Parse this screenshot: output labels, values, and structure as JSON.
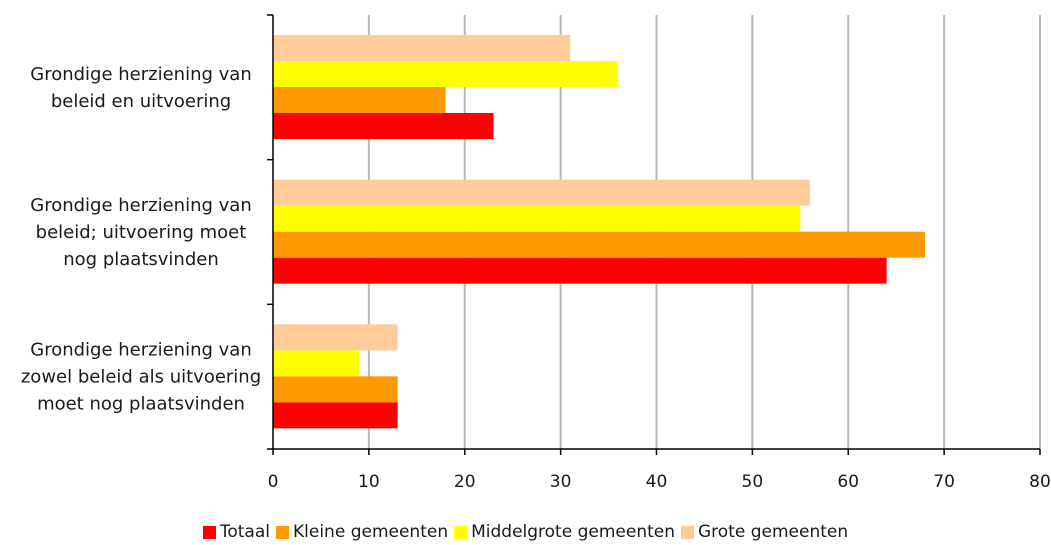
{
  "chart_data": {
    "type": "bar",
    "orientation": "horizontal",
    "categories": [
      [
        "Grondige herziening van",
        "beleid en uitvoering"
      ],
      [
        "Grondige herziening van",
        "beleid; uitvoering moet",
        "nog plaatsvinden"
      ],
      [
        "Grondige herziening van",
        "zowel beleid als uitvoering",
        "moet nog plaatsvinden"
      ]
    ],
    "series": [
      {
        "name": "Totaal",
        "color": "#ff0000",
        "values": [
          23,
          64,
          13
        ]
      },
      {
        "name": "Kleine gemeenten",
        "color": "#ff9900",
        "values": [
          18,
          68,
          13
        ]
      },
      {
        "name": "Middelgrote gemeenten",
        "color": "#ffff00",
        "values": [
          36,
          55,
          9
        ]
      },
      {
        "name": "Grote gemeenten",
        "color": "#ffcc99",
        "values": [
          31,
          56,
          13
        ]
      }
    ],
    "xlim": [
      0,
      80
    ],
    "xticks": [
      "0",
      "10",
      "20",
      "30",
      "40",
      "50",
      "60",
      "70",
      "80"
    ],
    "grid": "vertical",
    "legend_position": "bottom"
  }
}
